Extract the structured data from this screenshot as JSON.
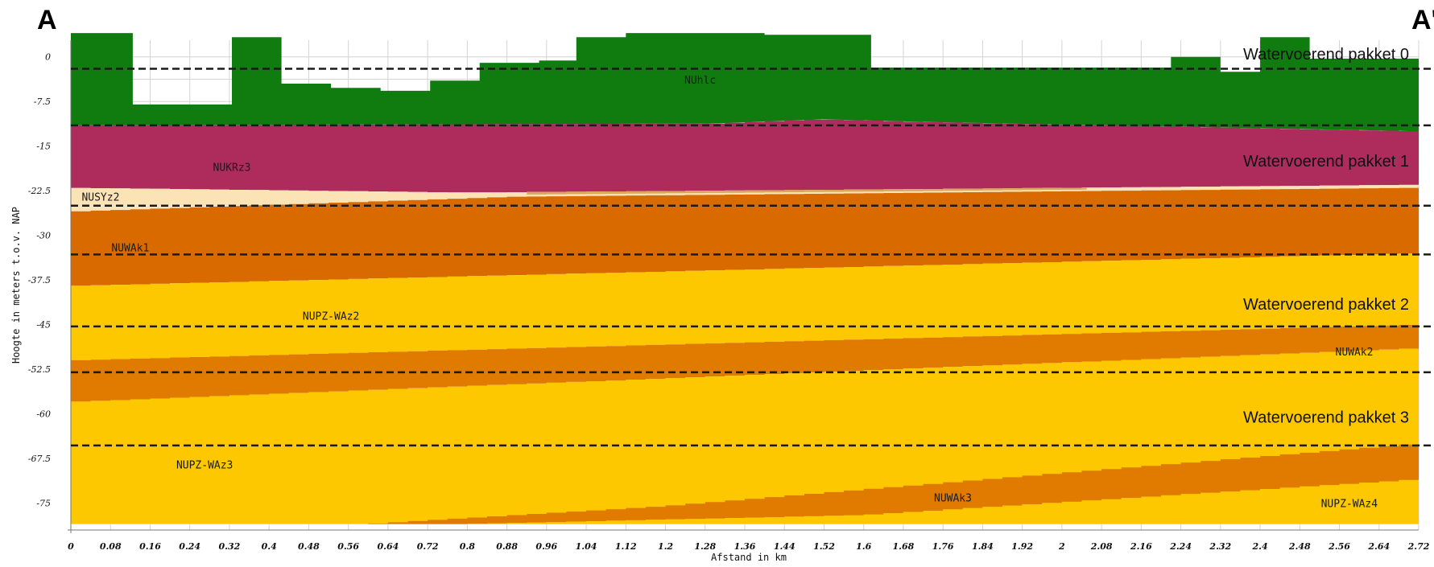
{
  "header": {
    "left_label": "A",
    "right_label": "A'"
  },
  "colors": {
    "NUhlc": "#107c10",
    "NUKRz3": "#ad2c5c",
    "NUSYz2_light": "#fbe3b6",
    "NUSYz2_dark": "#d9a85a",
    "NUWAk": "#d86a00",
    "NUPZ": "#fdc800",
    "NUWAk2": "#e07b00",
    "grid": "#d4d4d4",
    "dash": "#1a1a1a"
  },
  "chart_data": {
    "type": "area",
    "xlabel": "Afstand in km",
    "ylabel": "Hoogte in meters t.o.v. NAP",
    "xlim": [
      0,
      2.72
    ],
    "ylim": [
      -79.5,
      2.8
    ],
    "x_ticks": [
      "0",
      "0.08",
      "0.16",
      "0.24",
      "0.32",
      "0.4",
      "0.48",
      "0.56",
      "0.64",
      "0.72",
      "0.8",
      "0.88",
      "0.96",
      "1.04",
      "1.12",
      "1.2",
      "1.28",
      "1.36",
      "1.44",
      "1.52",
      "1.6",
      "1.68",
      "1.76",
      "1.84",
      "1.92",
      "2",
      "2.08",
      "2.16",
      "2.24",
      "2.32",
      "2.4",
      "2.48",
      "2.56",
      "2.64",
      "2.72"
    ],
    "y_ticks": [
      "0",
      "-7.5",
      "-15",
      "-22.5",
      "-30",
      "-37.5",
      "-45",
      "-52.5",
      "-60",
      "-67.5",
      "-75"
    ],
    "surface": {
      "x": [
        0,
        0.125,
        0.125,
        0.325,
        0.325,
        0.425,
        0.425,
        0.525,
        0.525,
        0.625,
        0.625,
        0.725,
        0.725,
        0.825,
        0.825,
        0.945,
        0.945,
        1.02,
        1.02,
        1.12,
        1.12,
        1.4,
        1.4,
        1.615,
        1.615,
        2.22,
        2.22,
        2.32,
        2.32,
        2.4,
        2.4,
        2.5,
        2.5,
        2.72
      ],
      "y": [
        4,
        4,
        -8,
        -8,
        3.3,
        3.3,
        -4.5,
        -4.5,
        -5.2,
        -5.2,
        -5.7,
        -5.7,
        -4,
        -4,
        -1,
        -1,
        -0.6,
        -0.6,
        3.3,
        3.3,
        4,
        4,
        3.7,
        3.7,
        -1.8,
        -1.8,
        0,
        0,
        -2.5,
        -2.5,
        3.3,
        3.3,
        -0.3,
        -0.3
      ]
    },
    "layers": [
      {
        "name": "NUhlc",
        "label_x": 1.27,
        "label_y": -3.8
      },
      {
        "name": "NUKRz3",
        "label_x": 0.325,
        "label_y": -18.5
      },
      {
        "name": "NUSYz2",
        "label_x": 0.06,
        "label_y": -23.5
      },
      {
        "name": "NUWAk1",
        "label_x": 0.12,
        "label_y": -32
      },
      {
        "name": "NUPZ-WAz2",
        "label_x": 0.525,
        "label_y": -43.5
      },
      {
        "name": "NUWAk2",
        "label_x": 2.59,
        "label_y": -49.5
      },
      {
        "name": "NUPZ-WAz3",
        "label_x": 0.27,
        "label_y": -68.5
      },
      {
        "name": "NUWAk3",
        "label_x": 1.78,
        "label_y": -74
      },
      {
        "name": "NUPZ-WAz4",
        "label_x": 2.58,
        "label_y": -75
      }
    ],
    "boundaries": {
      "hlc_base": {
        "x": [
          0,
          1.3,
          1.52,
          1.76,
          2.72
        ],
        "y": [
          -11.5,
          -11.2,
          -10.5,
          -11,
          -12.5
        ]
      },
      "kr_base": {
        "x": [
          0,
          0.8,
          1.6,
          2.72
        ],
        "y": [
          -22,
          -22.8,
          -22.3,
          -21.5
        ]
      },
      "sy_base": {
        "x": [
          0,
          0.9,
          2.72
        ],
        "y": [
          -26,
          -23.5,
          -22
        ]
      },
      "wak1_base": {
        "x": [
          0,
          2.72
        ],
        "y": [
          -38.5,
          -33
        ]
      },
      "wak2_top": {
        "x": [
          0,
          2.72
        ],
        "y": [
          -51,
          -45
        ]
      },
      "wak2_base": {
        "x": [
          0,
          2.72
        ],
        "y": [
          -58,
          -49
        ]
      },
      "wak3_top": {
        "x": [
          0.6,
          1.2,
          1.92,
          2.72
        ],
        "y": [
          -78.5,
          -75.5,
          -70.5,
          -65
        ]
      },
      "wak3_base": {
        "x": [
          0.8,
          1.6,
          2.72
        ],
        "y": [
          -78.5,
          -77,
          -71
        ]
      },
      "bottom": -78.5
    },
    "packages": [
      {
        "name": "Watervoerend pakket 0",
        "label_y": 0.5
      },
      {
        "name": "Watervoerend pakket 1",
        "label_y": -17.5
      },
      {
        "name": "Watervoerend pakket 2",
        "label_y": -41.5
      },
      {
        "name": "Watervoerend pakket 3",
        "label_y": -60.5
      }
    ],
    "dashed_lines_y": [
      -2,
      -11.5,
      -25,
      -33.2,
      -45.3,
      -53,
      -65.3
    ]
  }
}
